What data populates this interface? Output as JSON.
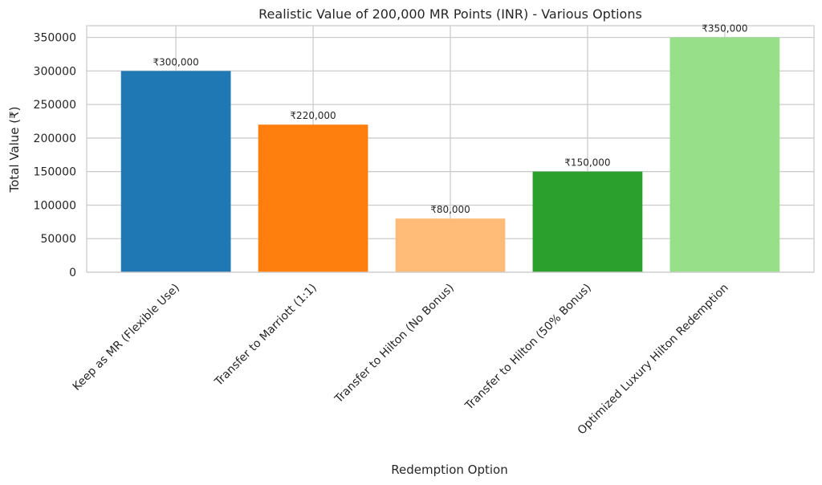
{
  "chart_data": {
    "type": "bar",
    "title": "Realistic Value of 200,000 MR Points (INR) - Various Options",
    "xlabel": "Redemption Option",
    "ylabel": "Total Value (₹)",
    "categories": [
      "Keep as MR (Flexible Use)",
      "Transfer to Marriott (1:1)",
      "Transfer to Hilton (No Bonus)",
      "Transfer to Hilton (50% Bonus)",
      "Optimized Luxury Hilton Redemption"
    ],
    "values": [
      300000,
      220000,
      80000,
      150000,
      350000
    ],
    "data_labels": [
      "₹300,000",
      "₹220,000",
      "₹80,000",
      "₹150,000",
      "₹350,000"
    ],
    "colors": [
      "#1f77b4",
      "#ff7f0e",
      "#ffbb78",
      "#2ca02c",
      "#98df8a"
    ],
    "ylim": [
      0,
      367500
    ],
    "yticks": [
      0,
      50000,
      100000,
      150000,
      200000,
      250000,
      300000,
      350000
    ],
    "ytick_labels": [
      "0",
      "50000",
      "100000",
      "150000",
      "200000",
      "250000",
      "300000",
      "350000"
    ],
    "grid": true
  }
}
